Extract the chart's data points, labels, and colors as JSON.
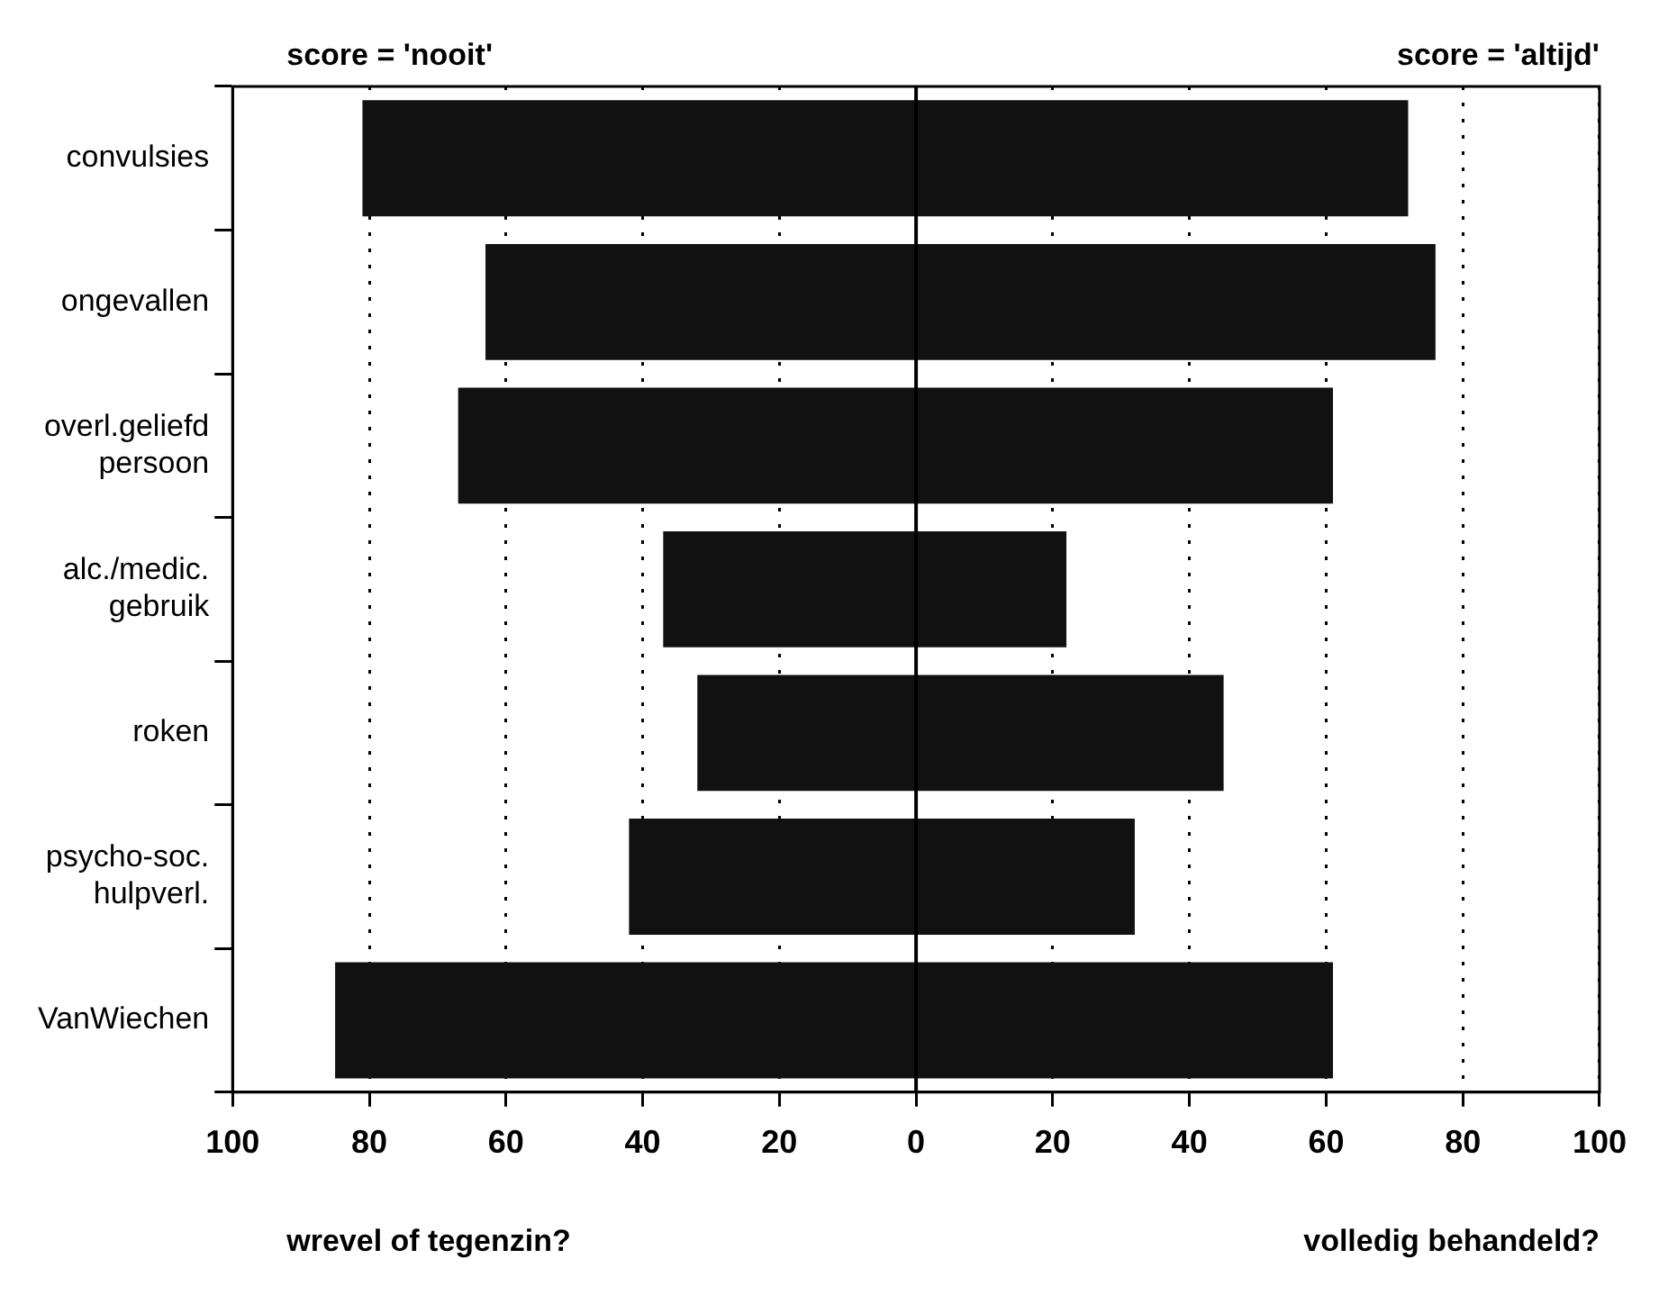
{
  "chart_data": {
    "type": "bar",
    "orientation": "horizontal",
    "categories": [
      "convulsies",
      "ongevallen",
      "overl.geliefd persoon",
      "alc./medic. gebruik",
      "roken",
      "psycho-soc. hulpverl.",
      "VanWiechen"
    ],
    "base": [
      -81,
      -63,
      -67,
      -37,
      -32,
      -42,
      -85
    ],
    "values": [
      153,
      139,
      128,
      59,
      77,
      74,
      146
    ],
    "color": "#111111",
    "xlim": [
      -100,
      100
    ],
    "xticks": [
      {
        "value": -100,
        "label": "100"
      },
      {
        "value": -80,
        "label": "80"
      },
      {
        "value": -60,
        "label": "60"
      },
      {
        "value": -40,
        "label": "40"
      },
      {
        "value": -20,
        "label": "20"
      },
      0,
      20,
      40,
      60,
      80,
      100
    ],
    "grid": "x",
    "ref_lines": [
      {
        "axis": "x",
        "value": 0,
        "line_style": "solid",
        "color": "#000000"
      }
    ],
    "annotations": [
      "score = 'nooit'",
      "score = 'altijd'",
      "wrevel of tegenzin?",
      "volledig behandeld?"
    ]
  }
}
